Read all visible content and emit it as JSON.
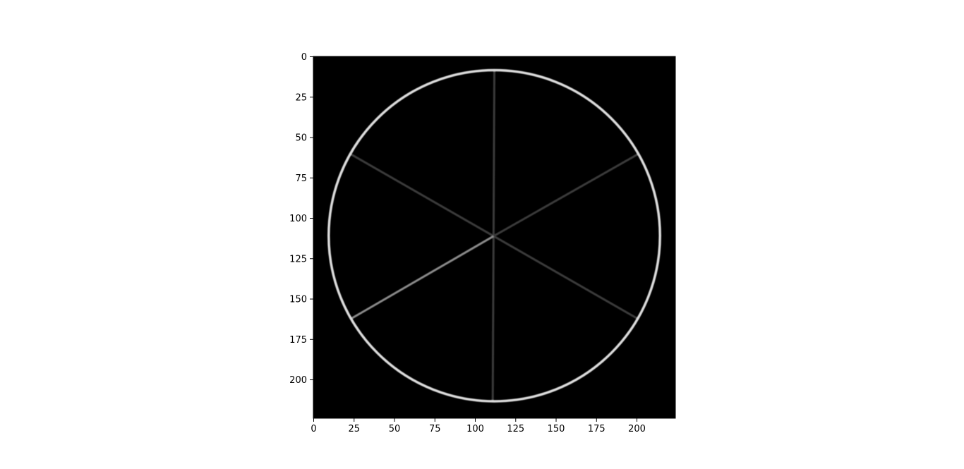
{
  "image": {
    "description_colors": {
      "background": "#000000",
      "ring": "#dcdcdc",
      "spoke_bright": "#8a8a8a",
      "spoke_dim": "#3a3a3a",
      "axis": "#000000",
      "page": "#ffffff"
    },
    "extent": {
      "x": [
        0,
        224
      ],
      "y": [
        0,
        224
      ]
    },
    "circle": {
      "cx": 112,
      "cy": 111,
      "r": 102.5
    },
    "spokes": [
      {
        "x1": 112,
        "y1": 9,
        "x2": 111,
        "y2": 213,
        "tone": "spoke_dim"
      },
      {
        "x1": 24,
        "y1": 61,
        "x2": 200,
        "y2": 162,
        "tone": "spoke_dim"
      },
      {
        "x1": 24,
        "y1": 162,
        "x2": 112,
        "y2": 111,
        "tone": "spoke_bright"
      },
      {
        "x1": 112,
        "y1": 111,
        "x2": 200,
        "y2": 61,
        "tone": "spoke_dim"
      }
    ]
  },
  "axes": {
    "x_ticks": [
      0,
      25,
      50,
      75,
      100,
      125,
      150,
      175,
      200
    ],
    "y_ticks": [
      0,
      25,
      50,
      75,
      100,
      125,
      150,
      175,
      200
    ],
    "x_tick_labels": [
      "0",
      "25",
      "50",
      "75",
      "100",
      "125",
      "150",
      "175",
      "200"
    ],
    "y_tick_labels": [
      "0",
      "25",
      "50",
      "75",
      "100",
      "125",
      "150",
      "175",
      "200"
    ]
  }
}
